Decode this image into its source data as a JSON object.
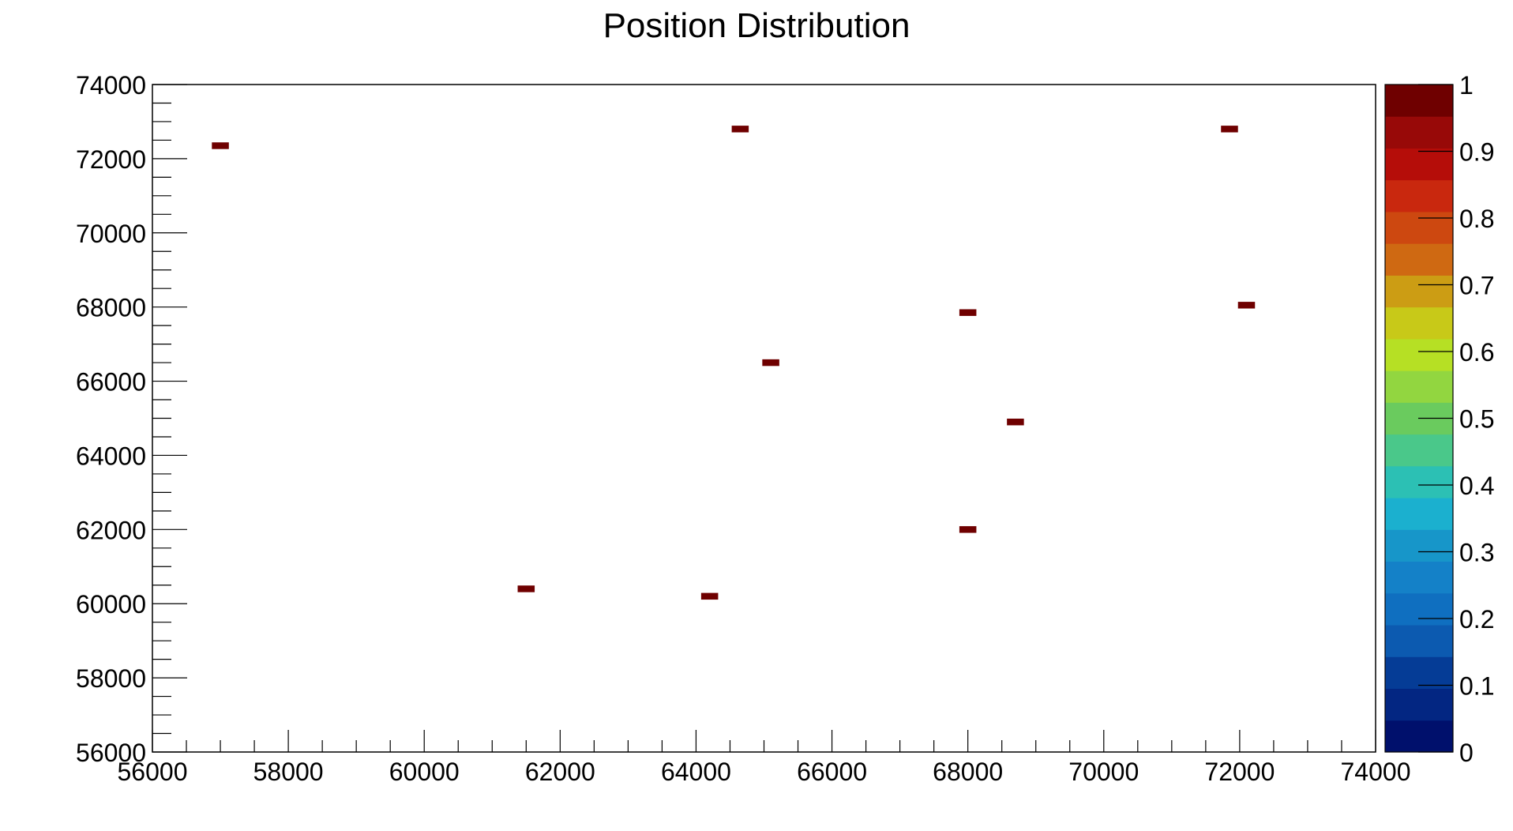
{
  "chart_data": {
    "type": "heatmap",
    "title": "Position Distribution",
    "xlabel": "",
    "ylabel": "",
    "xlim": [
      56000,
      74000
    ],
    "ylim": [
      56000,
      74000
    ],
    "x_ticks": [
      "56000",
      "58000",
      "60000",
      "62000",
      "64000",
      "66000",
      "68000",
      "70000",
      "72000",
      "74000"
    ],
    "y_ticks": [
      "56000",
      "58000",
      "60000",
      "62000",
      "64000",
      "66000",
      "68000",
      "70000",
      "72000",
      "74000"
    ],
    "grid": false,
    "bin_width": [
      250,
      180
    ],
    "points": [
      {
        "x": 57000,
        "y": 72350,
        "z": 1
      },
      {
        "x": 64650,
        "y": 72800,
        "z": 1
      },
      {
        "x": 71850,
        "y": 72800,
        "z": 1
      },
      {
        "x": 72100,
        "y": 68050,
        "z": 1
      },
      {
        "x": 68000,
        "y": 67850,
        "z": 1
      },
      {
        "x": 65100,
        "y": 66500,
        "z": 1
      },
      {
        "x": 68700,
        "y": 64900,
        "z": 1
      },
      {
        "x": 68000,
        "y": 62000,
        "z": 1
      },
      {
        "x": 61500,
        "y": 60400,
        "z": 1
      },
      {
        "x": 64200,
        "y": 60200,
        "z": 1
      }
    ],
    "colorbar": {
      "range": [
        0,
        1
      ],
      "tick_labels": [
        "0",
        "0.1",
        "0.2",
        "0.3",
        "0.4",
        "0.5",
        "0.6",
        "0.7",
        "0.8",
        "0.9",
        "1"
      ],
      "colors": [
        "#00106c",
        "#032682",
        "#053c96",
        "#0c5ab0",
        "#0f6fc0",
        "#1481c8",
        "#1796c9",
        "#1bb0cf",
        "#2cc0b4",
        "#4ac88a",
        "#6acb5e",
        "#92d640",
        "#b6e024",
        "#c8c918",
        "#cc9d14",
        "#cf6912",
        "#cd4810",
        "#c9280e",
        "#b50d09",
        "#980908",
        "#6f0000"
      ]
    }
  }
}
